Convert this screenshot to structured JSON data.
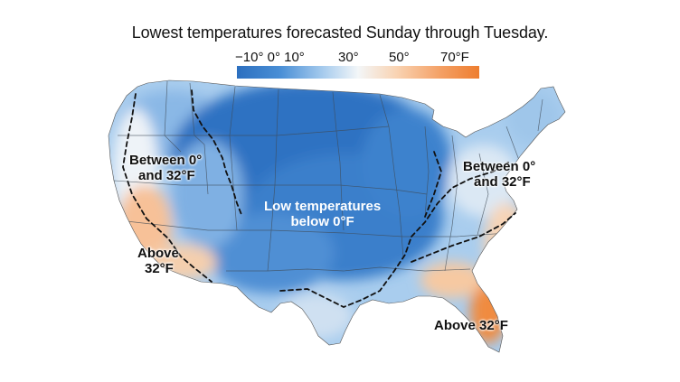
{
  "title": "Lowest temperatures forecasted Sunday through Tuesday.",
  "legend": {
    "tick_labels": [
      "−10° 0° 10°",
      "30°",
      "50°",
      "70°F"
    ],
    "colors": [
      "#2c6fbf",
      "#4a8fd6",
      "#a9cdee",
      "#f3f6f8",
      "#f9d3b2",
      "#f4a065",
      "#ee7d2f"
    ]
  },
  "labels": {
    "west_between": [
      "Between 0°",
      "and 32°F"
    ],
    "east_between": [
      "Between 0°",
      "and 32°F"
    ],
    "west_above": [
      "Above",
      "32°F"
    ],
    "florida_above": "Above 32°F",
    "center_low": [
      "Low temperatures",
      "below 0°F"
    ]
  },
  "colors": {
    "cold": "#2c6fbf",
    "cool": "#9fc6ea",
    "mild": "#eef3f8",
    "warm": "#f7bd8c",
    "hot": "#ee7d2f"
  }
}
